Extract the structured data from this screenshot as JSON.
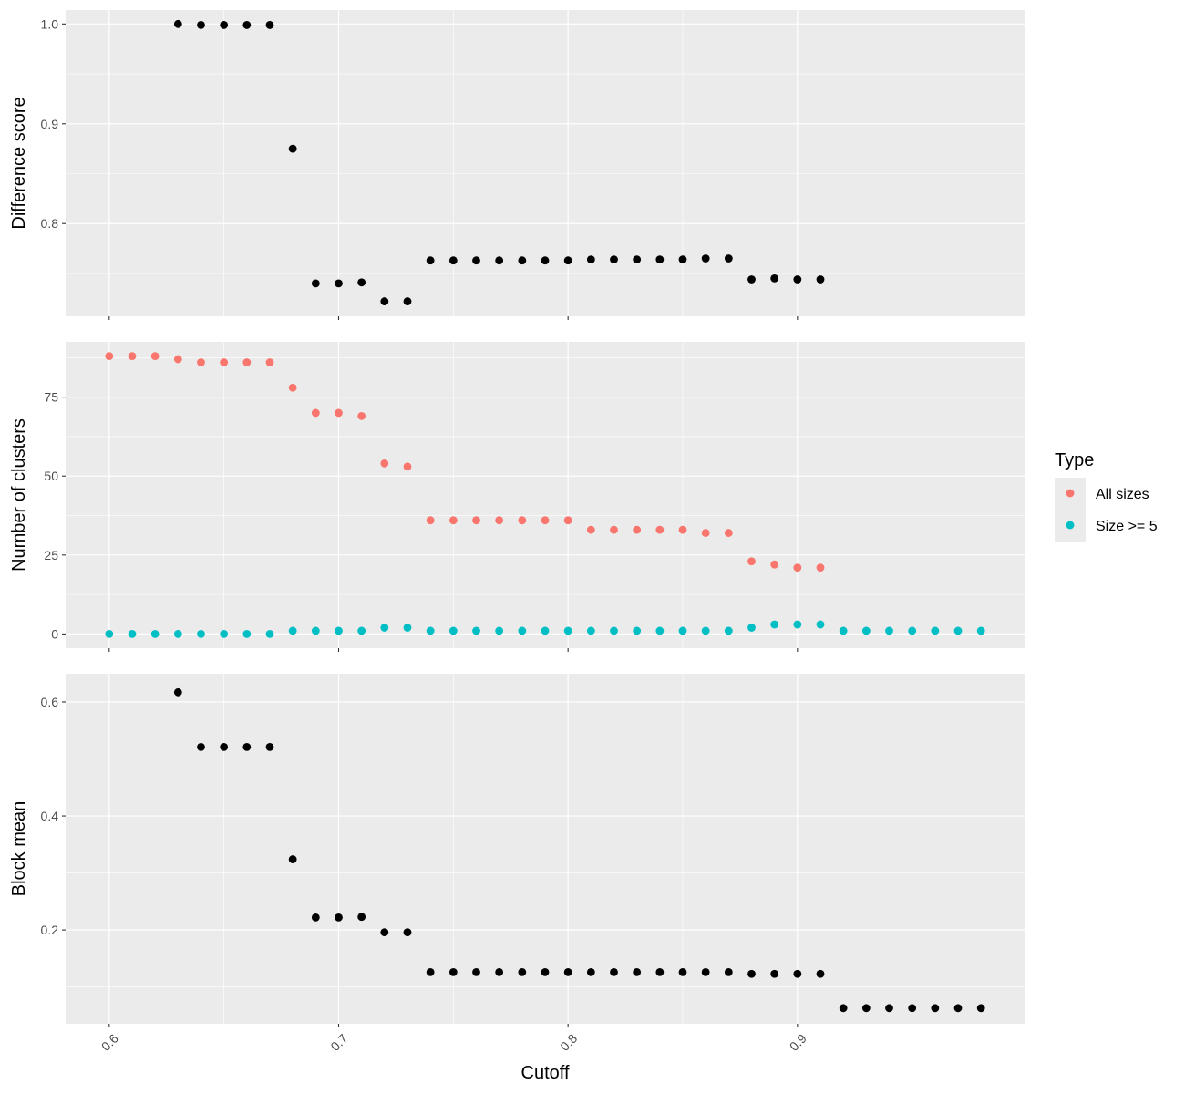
{
  "chart_data": [
    {
      "type": "scatter",
      "ylabel": "Difference score",
      "xlim": [
        0.581,
        0.999
      ],
      "ylim": [
        0.707,
        1.014
      ],
      "y_ticks": [
        0.8,
        0.9,
        1.0
      ],
      "y_tick_labels": [
        "0.8",
        "0.9",
        "1.0"
      ],
      "color": "#000000",
      "series": [
        {
          "x": [
            0.63,
            0.64,
            0.65,
            0.66,
            0.67,
            0.68,
            0.69,
            0.7,
            0.71,
            0.72,
            0.73,
            0.74,
            0.75,
            0.76,
            0.77,
            0.78,
            0.79,
            0.8,
            0.81,
            0.82,
            0.83,
            0.84,
            0.85,
            0.86,
            0.87,
            0.88,
            0.89,
            0.9,
            0.91
          ],
          "y": [
            1.0,
            0.999,
            0.999,
            0.999,
            0.999,
            0.875,
            0.74,
            0.74,
            0.741,
            0.722,
            0.722,
            0.763,
            0.763,
            0.763,
            0.763,
            0.763,
            0.763,
            0.763,
            0.764,
            0.764,
            0.764,
            0.764,
            0.764,
            0.765,
            0.765,
            0.744,
            0.745,
            0.744,
            0.744
          ]
        }
      ]
    },
    {
      "type": "scatter",
      "ylabel": "Number of clusters",
      "xlim": [
        0.581,
        0.999
      ],
      "ylim": [
        -4.5,
        92.5
      ],
      "y_ticks": [
        0,
        25,
        50,
        75
      ],
      "y_tick_labels": [
        "0",
        "25",
        "50",
        "75"
      ],
      "legend": {
        "title": "Type",
        "position": "right"
      },
      "series": [
        {
          "name": "All sizes",
          "color": "#F8766D",
          "x": [
            0.6,
            0.61,
            0.62,
            0.63,
            0.64,
            0.65,
            0.66,
            0.67,
            0.68,
            0.69,
            0.7,
            0.71,
            0.72,
            0.73,
            0.74,
            0.75,
            0.76,
            0.77,
            0.78,
            0.79,
            0.8,
            0.81,
            0.82,
            0.83,
            0.84,
            0.85,
            0.86,
            0.87,
            0.88,
            0.89,
            0.9,
            0.91
          ],
          "y": [
            88,
            88,
            88,
            87,
            86,
            86,
            86,
            86,
            78,
            70,
            70,
            69,
            54,
            53,
            36,
            36,
            36,
            36,
            36,
            36,
            36,
            33,
            33,
            33,
            33,
            33,
            32,
            32,
            23,
            22,
            21,
            21
          ]
        },
        {
          "name": "Size >= 5",
          "color": "#00BFC4",
          "x": [
            0.6,
            0.61,
            0.62,
            0.63,
            0.64,
            0.65,
            0.66,
            0.67,
            0.68,
            0.69,
            0.7,
            0.71,
            0.72,
            0.73,
            0.74,
            0.75,
            0.76,
            0.77,
            0.78,
            0.79,
            0.8,
            0.81,
            0.82,
            0.83,
            0.84,
            0.85,
            0.86,
            0.87,
            0.88,
            0.89,
            0.9,
            0.91,
            0.92,
            0.93,
            0.94,
            0.95,
            0.96,
            0.97,
            0.98
          ],
          "y": [
            0,
            0,
            0,
            0,
            0,
            0,
            0,
            0,
            1,
            1,
            1,
            1,
            2,
            2,
            1,
            1,
            1,
            1,
            1,
            1,
            1,
            1,
            1,
            1,
            1,
            1,
            1,
            1,
            2,
            3,
            3,
            3,
            1,
            1,
            1,
            1,
            1,
            1,
            1
          ]
        }
      ]
    },
    {
      "type": "scatter",
      "xlabel": "Cutoff",
      "ylabel": "Block mean",
      "xlim": [
        0.581,
        0.999
      ],
      "ylim": [
        0.0355,
        0.6495
      ],
      "x_ticks": [
        0.6,
        0.7,
        0.8,
        0.9
      ],
      "x_tick_labels": [
        "0.6",
        "0.7",
        "0.8",
        "0.9"
      ],
      "y_ticks": [
        0.2,
        0.4,
        0.6
      ],
      "y_tick_labels": [
        "0.2",
        "0.4",
        "0.6"
      ],
      "color": "#000000",
      "series": [
        {
          "x": [
            0.63,
            0.64,
            0.65,
            0.66,
            0.67,
            0.68,
            0.69,
            0.7,
            0.71,
            0.72,
            0.73,
            0.74,
            0.75,
            0.76,
            0.77,
            0.78,
            0.79,
            0.8,
            0.81,
            0.82,
            0.83,
            0.84,
            0.85,
            0.86,
            0.87,
            0.88,
            0.89,
            0.9,
            0.91,
            0.92,
            0.93,
            0.94,
            0.95,
            0.96,
            0.97,
            0.98
          ],
          "y": [
            0.617,
            0.521,
            0.521,
            0.521,
            0.521,
            0.324,
            0.222,
            0.222,
            0.223,
            0.196,
            0.196,
            0.126,
            0.126,
            0.126,
            0.126,
            0.126,
            0.126,
            0.126,
            0.126,
            0.126,
            0.126,
            0.126,
            0.126,
            0.126,
            0.126,
            0.123,
            0.123,
            0.123,
            0.123,
            0.063,
            0.063,
            0.063,
            0.063,
            0.063,
            0.063,
            0.063
          ]
        }
      ]
    }
  ]
}
